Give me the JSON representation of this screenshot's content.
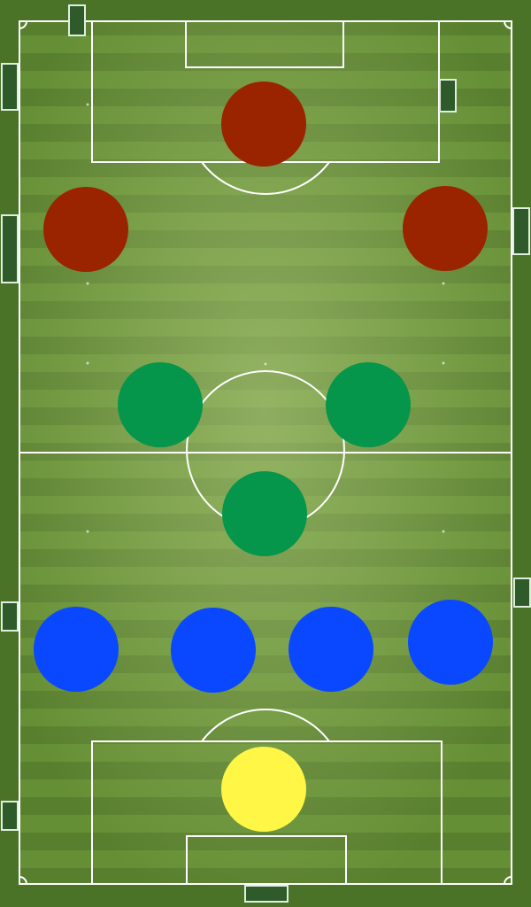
{
  "pitch": {
    "grass_light": "#6f9a3c",
    "grass_dark": "#4e7a2a",
    "line_color": "#ffffff",
    "net_color": "#cfe3cf"
  },
  "team_colors": {
    "forward": "#9b2400",
    "midfield": "#05964b",
    "defense": "#0a48ff",
    "goalkeeper": "#fff646"
  },
  "formation": {
    "forwards": [
      {
        "id": "forward-center"
      },
      {
        "id": "forward-left"
      },
      {
        "id": "forward-right"
      }
    ],
    "midfielders": [
      {
        "id": "midfielder-left"
      },
      {
        "id": "midfielder-right"
      },
      {
        "id": "midfielder-center"
      }
    ],
    "defenders": [
      {
        "id": "defender-1"
      },
      {
        "id": "defender-2"
      },
      {
        "id": "defender-3"
      },
      {
        "id": "defender-4"
      }
    ],
    "goalkeeper": {
      "id": "goalkeeper"
    }
  }
}
